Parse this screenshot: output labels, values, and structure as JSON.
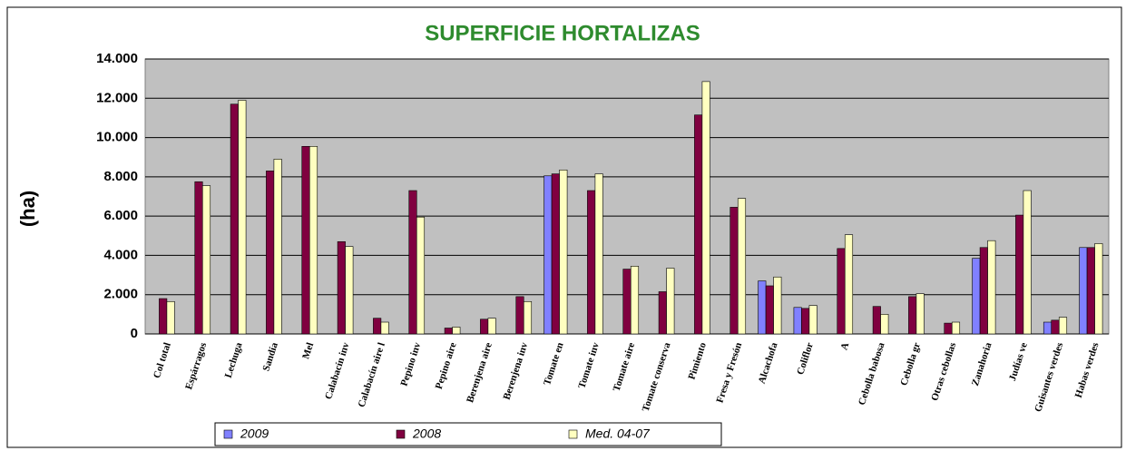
{
  "chart_data": {
    "type": "bar",
    "title": "SUPERFICIE HORTALIZAS",
    "y_label": "(ha)",
    "categories": [
      "Col total",
      "Espárragos",
      "Lechuga",
      "Sandía",
      "Mel",
      "Calabacín inv",
      "Calabacín aire l",
      "Pepino inv",
      "Pepino aire",
      "Berenjena aire",
      "Berenjena inv",
      "Tomate en",
      "Tomate inv",
      "Tomate aire",
      "Tomate conserva",
      "Pimiento",
      "Fresa y Fresón",
      "Alcachofa",
      "Coliflor",
      "A",
      "Cebolla babosa",
      "Cebolla gr",
      "Otras cebollas",
      "Zanahoria",
      "Judías ve",
      "Guisantes verdes",
      "Habas verdes"
    ],
    "series": [
      {
        "name": "2009",
        "color": "#8080ff",
        "values": [
          null,
          null,
          null,
          null,
          null,
          null,
          null,
          null,
          null,
          null,
          null,
          8050,
          null,
          null,
          null,
          null,
          null,
          2700,
          1350,
          null,
          null,
          null,
          null,
          3850,
          null,
          600,
          4400
        ]
      },
      {
        "name": "2008",
        "color": "#800040",
        "values": [
          1800,
          7750,
          11700,
          8300,
          9550,
          4700,
          800,
          7300,
          300,
          750,
          1900,
          8150,
          7300,
          3300,
          2150,
          11150,
          6450,
          2450,
          1300,
          4350,
          1400,
          1900,
          550,
          4400,
          6050,
          700,
          4400
        ]
      },
      {
        "name": "Med. 04-07",
        "color": "#ffffc0",
        "values": [
          1650,
          7550,
          11900,
          8900,
          9550,
          4450,
          600,
          5950,
          350,
          800,
          1650,
          8350,
          8150,
          3450,
          3350,
          12850,
          6900,
          2900,
          1450,
          5050,
          1000,
          2050,
          600,
          4750,
          7300,
          850,
          4600
        ]
      }
    ],
    "ylim": [
      0,
      14000
    ],
    "yticks": [
      0,
      {
        "value": 2000,
        "label": "2.000"
      },
      {
        "value": 4000,
        "label": "4.000"
      },
      {
        "value": 6000,
        "label": "6.000"
      },
      {
        "value": 8000,
        "label": "8.000"
      },
      {
        "value": 10000,
        "label": "10.000"
      },
      {
        "value": 12000,
        "label": "12.000"
      },
      {
        "value": 14000,
        "label": "14.000"
      }
    ],
    "grid": true,
    "legend": "bottom"
  }
}
